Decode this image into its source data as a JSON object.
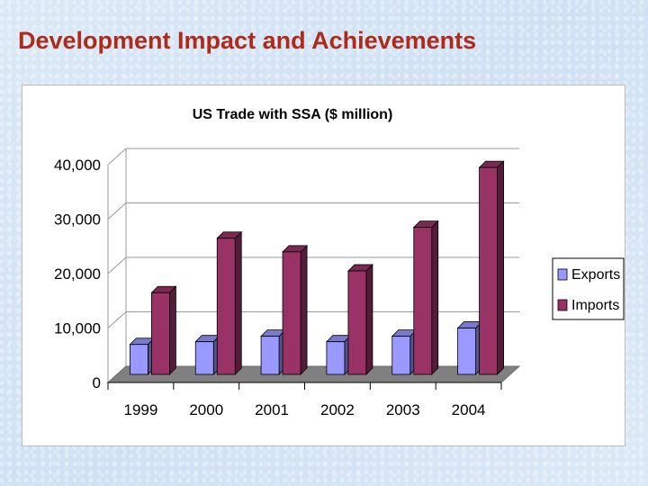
{
  "slide": {
    "title": "Development Impact and Achievements"
  },
  "colors": {
    "title": "#b02a1a",
    "exports": "#9999ff",
    "imports": "#993366",
    "floor": "#808080"
  },
  "chart_data": {
    "type": "bar",
    "title": "US Trade with SSA ($ million)",
    "xlabel": "",
    "ylabel": "",
    "categories": [
      "1999",
      "2000",
      "2001",
      "2002",
      "2003",
      "2004"
    ],
    "series": [
      {
        "name": "Exports",
        "values": [
          5500,
          6000,
          7000,
          6000,
          7000,
          8500
        ]
      },
      {
        "name": "Imports",
        "values": [
          15000,
          25000,
          22500,
          19000,
          27000,
          38000
        ]
      }
    ],
    "ylim": [
      0,
      40000
    ],
    "yticks": [
      "0",
      "10,000",
      "20,000",
      "30,000",
      "40,000"
    ],
    "grid": true,
    "legend": "right",
    "style": "3d-clustered-column"
  }
}
